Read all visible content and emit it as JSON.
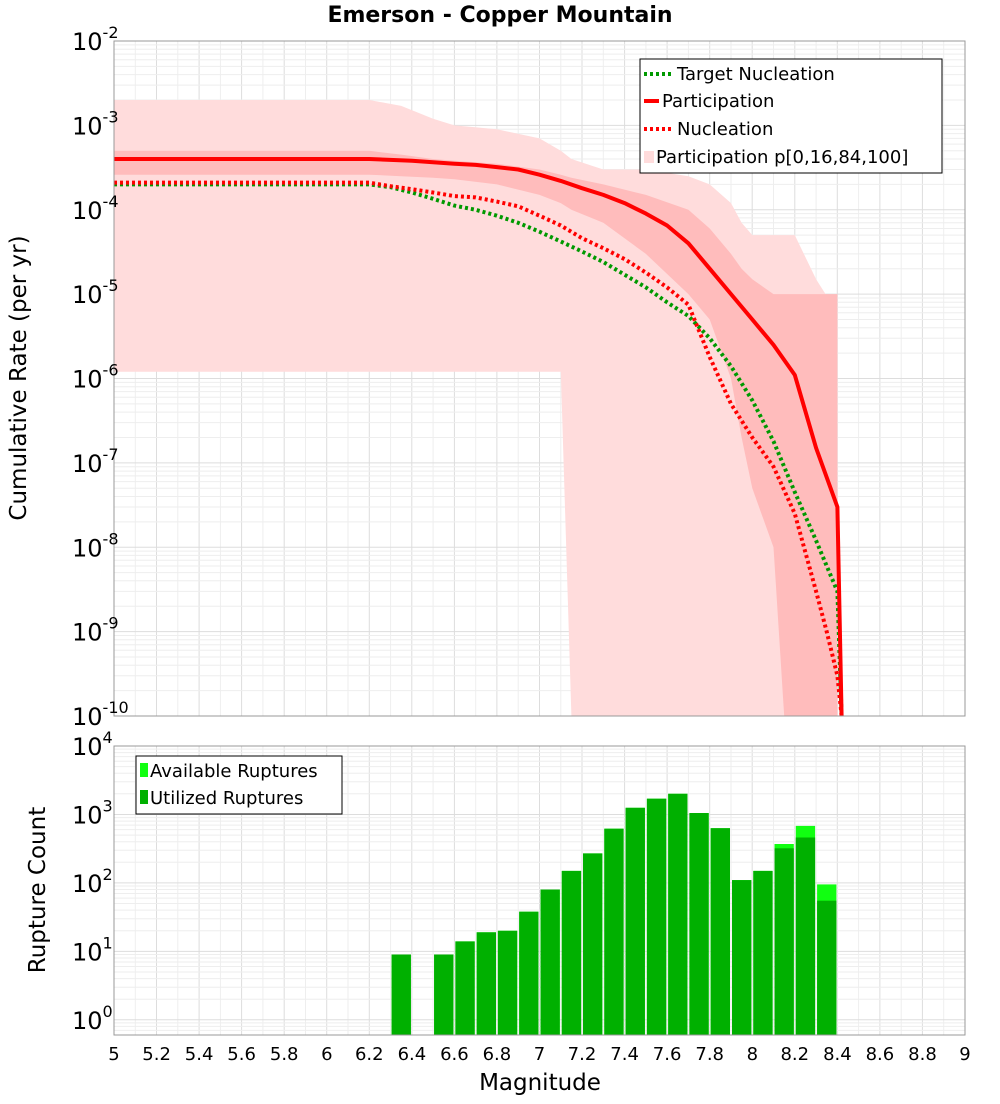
{
  "title": "Emerson - Copper Mountain",
  "colors": {
    "participation": "#ff0000",
    "nucleation": "#ff0000",
    "target_nucleation": "#009900",
    "band_outer": "#ffdcdc",
    "band_inner": "#ffbcbc",
    "utilized": "#00b000",
    "available": "#11ff11"
  },
  "chart_data": [
    {
      "type": "line",
      "title": "Emerson - Copper Mountain",
      "xlabel": "",
      "ylabel": "Cumulative Rate (per yr)",
      "yscale": "log",
      "xlim": [
        5,
        9
      ],
      "ylim": [
        1e-10,
        0.01
      ],
      "y_tick_exponents": [
        "-10",
        "-9",
        "-8",
        "-7",
        "-6",
        "-5",
        "-4",
        "-3",
        "-2"
      ],
      "grid": true,
      "legend": "top-right",
      "legend_entries": [
        "Target Nucleation",
        "Participation",
        "Nucleation",
        "Participation p[0,16,84,100]"
      ],
      "series": [
        {
          "name": "Target Nucleation",
          "style": "dotted",
          "x": [
            5.0,
            6.2,
            6.3,
            6.4,
            6.5,
            6.6,
            6.7,
            6.8,
            6.9,
            7.0,
            7.1,
            7.2,
            7.3,
            7.4,
            7.5,
            7.6,
            7.7,
            7.8,
            7.9,
            8.0,
            8.1,
            8.2,
            8.3,
            8.35,
            8.4,
            8.42
          ],
          "y": [
            0.0002,
            0.0002,
            0.000185,
            0.00016,
            0.000135,
            0.000112,
            0.0001,
            8.5e-05,
            7e-05,
            5.5e-05,
            4.2e-05,
            3.2e-05,
            2.4e-05,
            1.7e-05,
            1.2e-05,
            8e-06,
            5.5e-06,
            3e-06,
            1.4e-06,
            5.5e-07,
            1.8e-07,
            4.5e-08,
            1.2e-08,
            6e-09,
            3e-09,
            1e-10
          ]
        },
        {
          "name": "Participation",
          "style": "solid",
          "x": [
            5.0,
            6.2,
            6.4,
            6.6,
            6.7,
            6.8,
            6.9,
            7.0,
            7.1,
            7.2,
            7.3,
            7.4,
            7.5,
            7.6,
            7.7,
            7.8,
            7.9,
            8.0,
            8.1,
            8.2,
            8.3,
            8.4,
            8.42
          ],
          "y": [
            0.0004,
            0.0004,
            0.00038,
            0.00035,
            0.00034,
            0.00032,
            0.0003,
            0.00026,
            0.00022,
            0.00018,
            0.00015,
            0.00012,
            9e-05,
            6.5e-05,
            4e-05,
            2e-05,
            1e-05,
            5e-06,
            2.5e-06,
            1.1e-06,
            1.5e-07,
            3e-08,
            1e-10
          ]
        },
        {
          "name": "Nucleation",
          "style": "dotted",
          "x": [
            5.0,
            6.2,
            6.3,
            6.4,
            6.5,
            6.6,
            6.7,
            6.8,
            6.9,
            7.0,
            7.1,
            7.2,
            7.3,
            7.4,
            7.5,
            7.6,
            7.7,
            7.8,
            7.9,
            8.0,
            8.1,
            8.2,
            8.3,
            8.35,
            8.4,
            8.42
          ],
          "y": [
            0.00021,
            0.00021,
            0.00019,
            0.000175,
            0.00016,
            0.000145,
            0.00014,
            0.000125,
            0.00011,
            8.5e-05,
            6.5e-05,
            4.6e-05,
            3.5e-05,
            2.6e-05,
            1.8e-05,
            1.2e-05,
            7.5e-06,
            1.8e-06,
            5e-07,
            2e-07,
            9e-08,
            2.5e-08,
            3e-09,
            1e-09,
            3e-10,
            1e-10
          ]
        },
        {
          "name": "Participation p[0,16,84,100]",
          "style": "band",
          "x": [
            5.0,
            6.2,
            6.35,
            6.5,
            6.6,
            6.8,
            7.0,
            7.1,
            7.15,
            7.3,
            7.5,
            7.7,
            7.8,
            7.9,
            7.95,
            8.0,
            8.1,
            8.15,
            8.2,
            8.3,
            8.4
          ],
          "p100": [
            0.002,
            0.002,
            0.0017,
            0.0012,
            0.001,
            0.0009,
            0.0007,
            0.0005,
            0.0004,
            0.0003,
            0.0003,
            0.00025,
            0.0002,
            0.00012,
            7e-05,
            5e-05,
            5e-05,
            5e-05,
            5e-05,
            1.5e-05,
            6e-06
          ],
          "p84": [
            0.0005,
            0.0005,
            0.00045,
            0.0004,
            0.00038,
            0.00035,
            0.0003,
            0.00026,
            0.00024,
            0.0002,
            0.00015,
            0.0001,
            6e-05,
            3e-05,
            2e-05,
            1.5e-05,
            1e-05,
            1e-05,
            1e-05,
            1e-05,
            1e-05
          ],
          "p16": [
            0.00026,
            0.00026,
            0.00025,
            0.00024,
            0.00023,
            0.0002,
            0.00015,
            0.00012,
            0.0001,
            7e-05,
            3e-05,
            1e-05,
            5e-06,
            1e-06,
            2e-07,
            5e-08,
            1e-08,
            1e-10,
            1e-10,
            1e-10,
            1e-10
          ],
          "p0": [
            1.2e-06,
            1.2e-06,
            1.2e-06,
            1.2e-06,
            1.2e-06,
            1.2e-06,
            1.2e-06,
            1.2e-06,
            1e-10,
            1e-10,
            1e-10,
            1e-10,
            1e-10,
            1e-10,
            1e-10,
            1e-10,
            1e-10,
            1e-10,
            1e-10,
            1e-10,
            1e-10
          ]
        }
      ]
    },
    {
      "type": "bar",
      "xlabel": "Magnitude",
      "ylabel": "Rupture Count",
      "yscale": "log",
      "xlim": [
        5,
        9
      ],
      "ylim": [
        0.6,
        10000
      ],
      "x_ticks": [
        "5",
        "5.2",
        "5.4",
        "5.6",
        "5.8",
        "6",
        "6.2",
        "6.4",
        "6.6",
        "6.8",
        "7",
        "7.2",
        "7.4",
        "7.6",
        "7.8",
        "8",
        "8.2",
        "8.4",
        "8.6",
        "8.8",
        "9"
      ],
      "y_tick_exponents": [
        "0",
        "1",
        "2",
        "3",
        "4"
      ],
      "grid": true,
      "legend": "top-left",
      "legend_entries": [
        "Available Ruptures",
        "Utilized Ruptures"
      ],
      "bin_width": 0.1,
      "x": [
        6.35,
        6.55,
        6.65,
        6.75,
        6.85,
        6.95,
        7.05,
        7.15,
        7.25,
        7.35,
        7.45,
        7.55,
        7.65,
        7.75,
        7.85,
        7.95,
        8.05,
        8.15,
        8.25,
        8.35
      ],
      "series": [
        {
          "name": "Available Ruptures",
          "values": [
            9,
            9,
            14,
            19,
            20,
            38,
            80,
            150,
            270,
            620,
            1250,
            1700,
            2000,
            1050,
            630,
            110,
            150,
            370,
            680,
            95
          ]
        },
        {
          "name": "Utilized Ruptures",
          "values": [
            9,
            9,
            14,
            19,
            20,
            38,
            80,
            150,
            270,
            620,
            1250,
            1700,
            2000,
            1050,
            630,
            110,
            150,
            320,
            460,
            55
          ]
        }
      ]
    }
  ]
}
